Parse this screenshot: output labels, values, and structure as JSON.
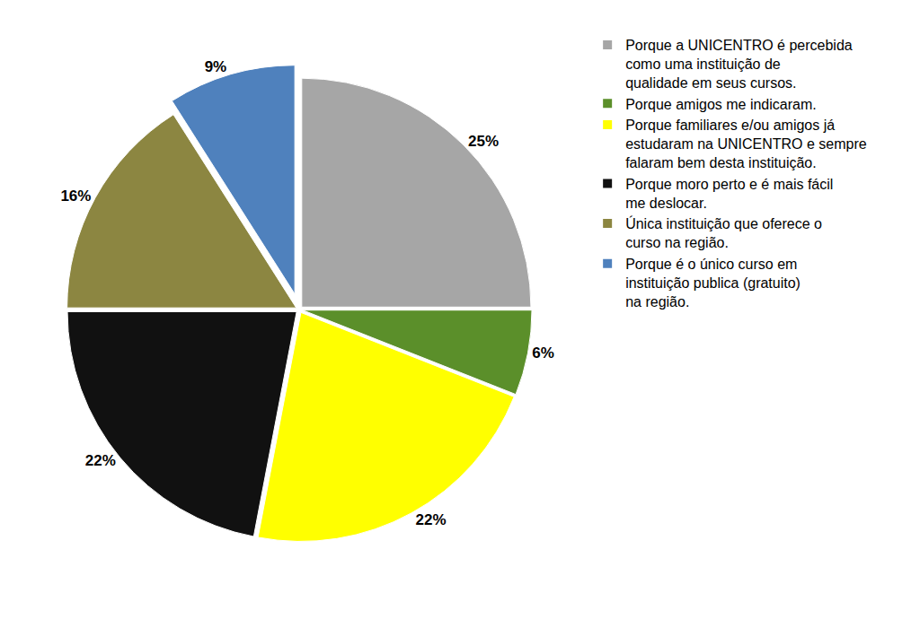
{
  "chart_data": {
    "type": "pie",
    "categories": [
      "Porque a UNICENTRO é percebida como uma instituição de qualidade em seus cursos.",
      "Porque amigos me indicaram.",
      "Porque familiares e/ou amigos já estudaram na UNICENTRO e sempre falaram bem desta instituição.",
      "Porque moro perto e é mais fácil me deslocar.",
      "Única instituição que oferece o curso na região.",
      "Porque é o único curso em instituição publica (gratuito) na região."
    ],
    "values": [
      25,
      6,
      22,
      22,
      16,
      9
    ],
    "value_labels": [
      "25%",
      "6%",
      "22%",
      "22%",
      "16%",
      "9%"
    ],
    "colors": [
      "#a6a6a6",
      "#5b8f2a",
      "#ffff00",
      "#111111",
      "#8c8641",
      "#4f81bd"
    ],
    "data_labels": true,
    "legend": "right"
  }
}
